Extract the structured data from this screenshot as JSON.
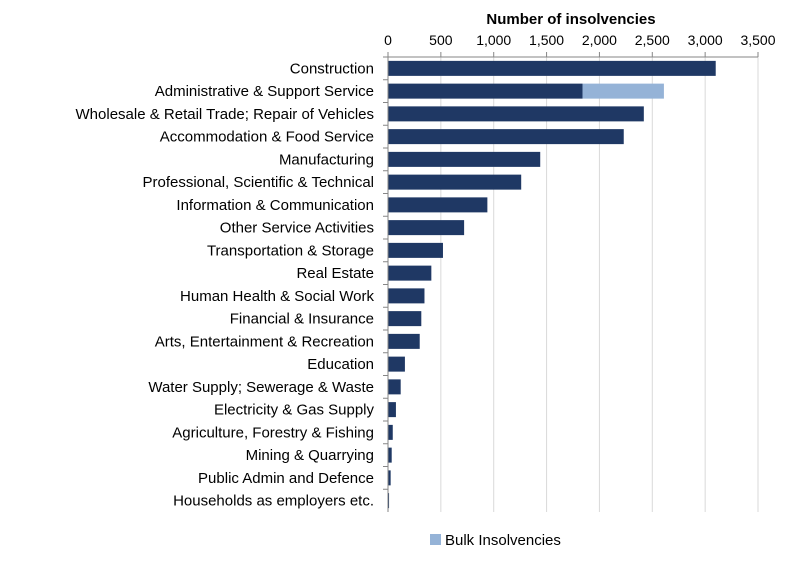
{
  "chart_data": {
    "type": "bar",
    "orientation": "horizontal",
    "stacked": true,
    "xlabel": "Number of insolvencies",
    "xlabel_position": "top",
    "xlim": [
      0,
      3500
    ],
    "xticks": [
      0,
      500,
      1000,
      1500,
      2000,
      2500,
      3000,
      3500
    ],
    "xtick_labels": [
      "0",
      "500",
      "1,000",
      "1,500",
      "2,000",
      "2,500",
      "3,000",
      "3,500"
    ],
    "grid": true,
    "legend_position": "bottom",
    "categories": [
      "Construction",
      "Administrative & Support Service",
      "Wholesale & Retail Trade; Repair of Vehicles",
      "Accommodation & Food Service",
      "Manufacturing",
      "Professional, Scientific & Technical",
      "Information & Communication",
      "Other Service Activities",
      "Transportation & Storage",
      "Real Estate",
      "Human Health & Social Work",
      "Financial & Insurance",
      "Arts, Entertainment & Recreation",
      "Education",
      "Water Supply; Sewerage & Waste",
      "Electricity & Gas Supply",
      "Agriculture, Forestry & Fishing",
      "Mining & Quarrying",
      "Public Admin and Defence",
      "Households as employers etc."
    ],
    "series": [
      {
        "color": "#1f3864",
        "values": [
          3100,
          1840,
          2420,
          2230,
          1440,
          1260,
          940,
          720,
          520,
          410,
          345,
          315,
          300,
          160,
          120,
          75,
          45,
          35,
          25,
          10
        ]
      },
      {
        "name": "Bulk Insolvencies",
        "color": "#95b3d7",
        "values": [
          0,
          770,
          0,
          0,
          0,
          0,
          0,
          0,
          0,
          0,
          0,
          0,
          0,
          0,
          0,
          0,
          0,
          0,
          0,
          0
        ]
      }
    ]
  }
}
